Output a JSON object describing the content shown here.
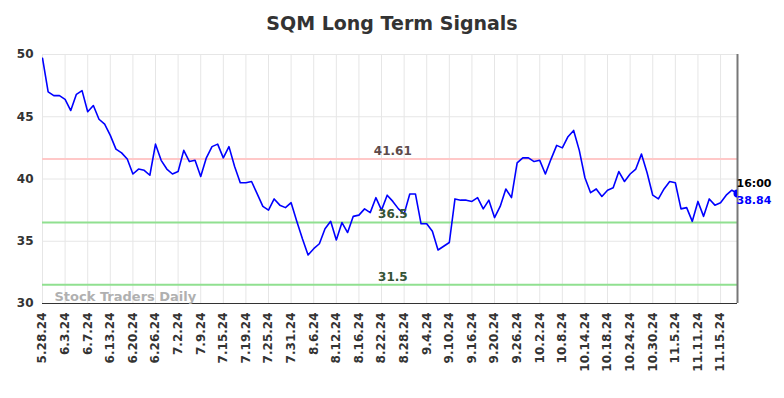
{
  "chart_data": {
    "type": "line",
    "title": "SQM Long Term Signals",
    "categories": [
      "5.28.24",
      null,
      null,
      null,
      "6.3.24",
      null,
      null,
      null,
      "6.7.24",
      null,
      null,
      null,
      "6.13.24",
      null,
      null,
      null,
      "6.20.24",
      null,
      null,
      null,
      "6.26.24",
      null,
      null,
      null,
      "7.2.24",
      null,
      null,
      null,
      "7.9.24",
      null,
      null,
      null,
      "7.15.24",
      null,
      null,
      null,
      "7.19.24",
      null,
      null,
      null,
      "7.25.24",
      null,
      null,
      null,
      "7.31.24",
      null,
      null,
      null,
      "8.6.24",
      null,
      null,
      null,
      "8.12.24",
      null,
      null,
      null,
      "8.16.24",
      null,
      null,
      null,
      "8.22.24",
      null,
      null,
      null,
      "8.28.24",
      null,
      null,
      null,
      "9.4.24",
      null,
      null,
      null,
      "9.10.24",
      null,
      null,
      null,
      "9.16.24",
      null,
      null,
      null,
      "9.20.24",
      null,
      null,
      null,
      "9.26.24",
      null,
      null,
      null,
      "10.2.24",
      null,
      null,
      null,
      "10.8.24",
      null,
      null,
      null,
      "10.14.24",
      null,
      null,
      null,
      "10.18.24",
      null,
      null,
      null,
      "10.24.24",
      null,
      null,
      null,
      "10.30.24",
      null,
      null,
      null,
      "11.5.24",
      null,
      null,
      null,
      "11.11.24",
      null,
      null,
      null,
      "11.15.24",
      null,
      null,
      null
    ],
    "values": [
      49.7,
      47.0,
      46.7,
      46.7,
      46.4,
      45.5,
      46.8,
      47.1,
      45.4,
      45.9,
      44.8,
      44.4,
      43.5,
      42.4,
      42.1,
      41.6,
      40.4,
      40.8,
      40.7,
      40.3,
      42.8,
      41.5,
      40.8,
      40.4,
      40.6,
      42.3,
      41.4,
      41.5,
      40.2,
      41.7,
      42.6,
      42.8,
      41.7,
      42.6,
      41.0,
      39.7,
      39.7,
      39.8,
      38.8,
      37.8,
      37.5,
      38.4,
      37.9,
      37.7,
      38.1,
      36.6,
      35.2,
      33.9,
      34.4,
      34.8,
      36.0,
      36.6,
      35.1,
      36.5,
      35.7,
      37.0,
      37.1,
      37.6,
      37.3,
      38.5,
      37.5,
      38.7,
      38.2,
      37.6,
      37.2,
      38.8,
      38.8,
      36.4,
      36.4,
      35.8,
      34.3,
      34.6,
      34.9,
      38.4,
      38.3,
      38.3,
      38.2,
      38.5,
      37.6,
      38.3,
      36.9,
      37.8,
      39.2,
      38.5,
      41.3,
      41.7,
      41.7,
      41.4,
      41.5,
      40.4,
      41.6,
      42.7,
      42.5,
      43.4,
      43.9,
      42.3,
      40.1,
      38.9,
      39.2,
      38.6,
      39.1,
      39.3,
      40.6,
      39.8,
      40.4,
      40.8,
      42.0,
      40.5,
      38.7,
      38.4,
      39.2,
      39.8,
      39.7,
      37.6,
      37.7,
      36.6,
      38.2,
      37.0,
      38.4,
      37.9,
      38.1,
      38.7,
      39.1,
      38.84
    ],
    "color": "#0000ff",
    "marker": "last",
    "ylim": [
      30,
      50
    ],
    "yticks": [
      30,
      35,
      40,
      45,
      50
    ],
    "grid": true,
    "reference_lines": [
      {
        "value": 41.61,
        "label": "41.61",
        "color": "#ffc8c8"
      },
      {
        "value": 36.5,
        "label": "36.5",
        "color": "#90e090"
      },
      {
        "value": 31.5,
        "label": "31.5",
        "color": "#90e090"
      }
    ],
    "end_labels": [
      "16:00",
      "38.84"
    ],
    "watermark": "Stock Traders Daily"
  }
}
